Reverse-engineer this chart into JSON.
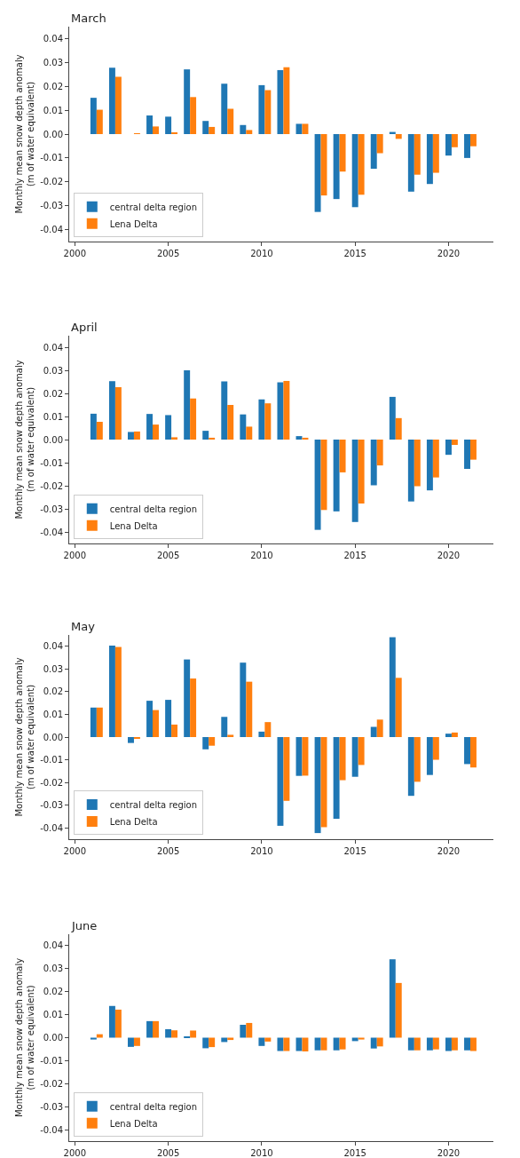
{
  "chart_data": [
    {
      "type": "bar",
      "title": "March",
      "ylabel": "Monthly mean snow depth anomaly\n(m of water equivalent)",
      "x": [
        2001,
        2002,
        2003,
        2004,
        2005,
        2006,
        2007,
        2008,
        2009,
        2010,
        2011,
        2012,
        2013,
        2014,
        2015,
        2016,
        2017,
        2018,
        2019,
        2020,
        2021
      ],
      "xlim": [
        1999.7,
        2022.4
      ],
      "xticks": [
        2000,
        2005,
        2010,
        2015,
        2020
      ],
      "ylim": [
        -0.045,
        0.045
      ],
      "yticks": [
        {
          "value": -0.04,
          "label": "-0.04"
        },
        {
          "value": -0.03,
          "label": "-0.03"
        },
        {
          "value": -0.02,
          "label": "-0.02"
        },
        {
          "value": -0.01,
          "label": "-0.01"
        },
        {
          "value": 0,
          "label": "0.00"
        },
        {
          "value": 0.01,
          "label": "0.01"
        },
        {
          "value": 0.02,
          "label": "0.02"
        },
        {
          "value": 0.03,
          "label": "0.03"
        },
        {
          "value": 0.04,
          "label": "0.04"
        }
      ],
      "legend": "bottom left",
      "series": [
        {
          "name": "central delta region",
          "color": "#1f77b4",
          "values": [
            0.0152,
            0.0278,
            0,
            0.0078,
            0.0073,
            0.0271,
            0.0055,
            0.0211,
            0.0038,
            0.0205,
            0.0268,
            0.0043,
            -0.0326,
            -0.0272,
            -0.0306,
            -0.0145,
            0.0009,
            -0.0241,
            -0.0209,
            -0.009,
            -0.01
          ]
        },
        {
          "name": "Lena Delta",
          "color": "#ff7f0e",
          "values": [
            0.0102,
            0.024,
            0.0001,
            0.0032,
            0.0004,
            0.0155,
            0.003,
            0.0106,
            0.0017,
            0.0184,
            0.028,
            0.0043,
            -0.0257,
            -0.0157,
            -0.0254,
            -0.008,
            -0.002,
            -0.017,
            -0.0162,
            -0.0055,
            -0.0051
          ]
        }
      ]
    },
    {
      "type": "bar",
      "title": "April",
      "ylabel": "Monthly mean snow depth anomaly\n(m of water equivalent)",
      "x": [
        2001,
        2002,
        2003,
        2004,
        2005,
        2006,
        2007,
        2008,
        2009,
        2010,
        2011,
        2012,
        2013,
        2014,
        2015,
        2016,
        2017,
        2018,
        2019,
        2020,
        2021
      ],
      "xlim": [
        1999.7,
        2022.4
      ],
      "xticks": [
        2000,
        2005,
        2010,
        2015,
        2020
      ],
      "ylim": [
        -0.045,
        0.045
      ],
      "yticks": [
        {
          "value": -0.04,
          "label": "-0.04"
        },
        {
          "value": -0.03,
          "label": "-0.03"
        },
        {
          "value": -0.02,
          "label": "-0.02"
        },
        {
          "value": -0.01,
          "label": "-0.01"
        },
        {
          "value": 0,
          "label": "0.00"
        },
        {
          "value": 0.01,
          "label": "0.01"
        },
        {
          "value": 0.02,
          "label": "0.02"
        },
        {
          "value": 0.03,
          "label": "0.03"
        },
        {
          "value": 0.04,
          "label": "0.04"
        }
      ],
      "legend": "bottom left",
      "series": [
        {
          "name": "central delta region",
          "color": "#1f77b4",
          "values": [
            0.0112,
            0.0253,
            0.0033,
            0.0111,
            0.0106,
            0.03,
            0.0038,
            0.0252,
            0.0109,
            0.0174,
            0.0248,
            0.0015,
            -0.0391,
            -0.0311,
            -0.0357,
            -0.0198,
            0.0185,
            -0.0268,
            -0.022,
            -0.0066,
            -0.0127
          ]
        },
        {
          "name": "Lena Delta",
          "color": "#ff7f0e",
          "values": [
            0.0077,
            0.0227,
            0.0035,
            0.0065,
            0.001,
            0.0178,
            0.0008,
            0.015,
            0.0056,
            0.0157,
            0.0254,
            0.0008,
            -0.0305,
            -0.0142,
            -0.0277,
            -0.0112,
            0.0093,
            -0.0202,
            -0.0164,
            -0.0023,
            -0.0087
          ]
        }
      ]
    },
    {
      "type": "bar",
      "title": "May",
      "ylabel": "Monthly mean snow depth anomaly\n(m of water equivalent)",
      "x": [
        2001,
        2002,
        2003,
        2004,
        2005,
        2006,
        2007,
        2008,
        2009,
        2010,
        2011,
        2012,
        2013,
        2014,
        2015,
        2016,
        2017,
        2018,
        2019,
        2020,
        2021
      ],
      "xlim": [
        1999.7,
        2022.4
      ],
      "xticks": [
        2000,
        2005,
        2010,
        2015,
        2020
      ],
      "ylim": [
        -0.045,
        0.045
      ],
      "yticks": [
        {
          "value": -0.04,
          "label": "-0.04"
        },
        {
          "value": -0.03,
          "label": "-0.03"
        },
        {
          "value": -0.02,
          "label": "-0.02"
        },
        {
          "value": -0.01,
          "label": "-0.01"
        },
        {
          "value": 0,
          "label": "0.00"
        },
        {
          "value": 0.01,
          "label": "0.01"
        },
        {
          "value": 0.02,
          "label": "0.02"
        },
        {
          "value": 0.03,
          "label": "0.03"
        },
        {
          "value": 0.04,
          "label": "0.04"
        }
      ],
      "legend": "bottom left",
      "series": [
        {
          "name": "central delta region",
          "color": "#1f77b4",
          "values": [
            0.013,
            0.0403,
            -0.0026,
            0.016,
            0.0164,
            0.0342,
            -0.0054,
            0.0089,
            0.0328,
            0.0024,
            -0.0391,
            -0.0171,
            -0.0423,
            -0.036,
            -0.0175,
            0.0045,
            0.044,
            -0.0259,
            -0.0167,
            0.0015,
            -0.0119
          ]
        },
        {
          "name": "Lena Delta",
          "color": "#ff7f0e",
          "values": [
            0.013,
            0.0397,
            -0.0006,
            0.0119,
            0.0055,
            0.0258,
            -0.0038,
            0.001,
            0.0244,
            0.0066,
            -0.0281,
            -0.017,
            -0.0397,
            -0.019,
            -0.0123,
            0.0077,
            0.0261,
            -0.0197,
            -0.01,
            0.002,
            -0.0134
          ]
        }
      ]
    },
    {
      "type": "bar",
      "title": "June",
      "ylabel": "Monthly mean snow depth anomaly\n(m of water equivalent)",
      "x": [
        2001,
        2002,
        2003,
        2004,
        2005,
        2006,
        2007,
        2008,
        2009,
        2010,
        2011,
        2012,
        2013,
        2014,
        2015,
        2016,
        2017,
        2018,
        2019,
        2020,
        2021
      ],
      "xlim": [
        1999.7,
        2022.4
      ],
      "xticks": [
        2000,
        2005,
        2010,
        2015,
        2020
      ],
      "ylim": [
        -0.045,
        0.045
      ],
      "yticks": [
        {
          "value": -0.04,
          "label": "-0.04"
        },
        {
          "value": -0.03,
          "label": "-0.03"
        },
        {
          "value": -0.02,
          "label": "-0.02"
        },
        {
          "value": -0.01,
          "label": "-0.01"
        },
        {
          "value": 0,
          "label": "0.00"
        },
        {
          "value": 0.01,
          "label": "0.01"
        },
        {
          "value": 0.02,
          "label": "0.02"
        },
        {
          "value": 0.03,
          "label": "0.03"
        },
        {
          "value": 0.04,
          "label": "0.04"
        }
      ],
      "legend": "bottom left",
      "series": [
        {
          "name": "central delta region",
          "color": "#1f77b4",
          "values": [
            -0.0008,
            0.0138,
            -0.004,
            0.0072,
            0.0037,
            0.0003,
            -0.0046,
            -0.0019,
            0.0056,
            -0.0036,
            -0.0058,
            -0.0058,
            -0.0055,
            -0.0055,
            -0.0015,
            -0.0047,
            0.0341,
            -0.0055,
            -0.0055,
            -0.0058,
            -0.0055
          ]
        },
        {
          "name": "Lena Delta",
          "color": "#ff7f0e",
          "values": [
            0.0015,
            0.0122,
            -0.0036,
            0.0072,
            0.0032,
            0.0031,
            -0.0041,
            -0.001,
            0.0064,
            -0.0017,
            -0.0058,
            -0.006,
            -0.0055,
            -0.0051,
            -0.0008,
            -0.0038,
            0.0238,
            -0.0055,
            -0.0051,
            -0.0055,
            -0.0058
          ]
        }
      ]
    }
  ]
}
